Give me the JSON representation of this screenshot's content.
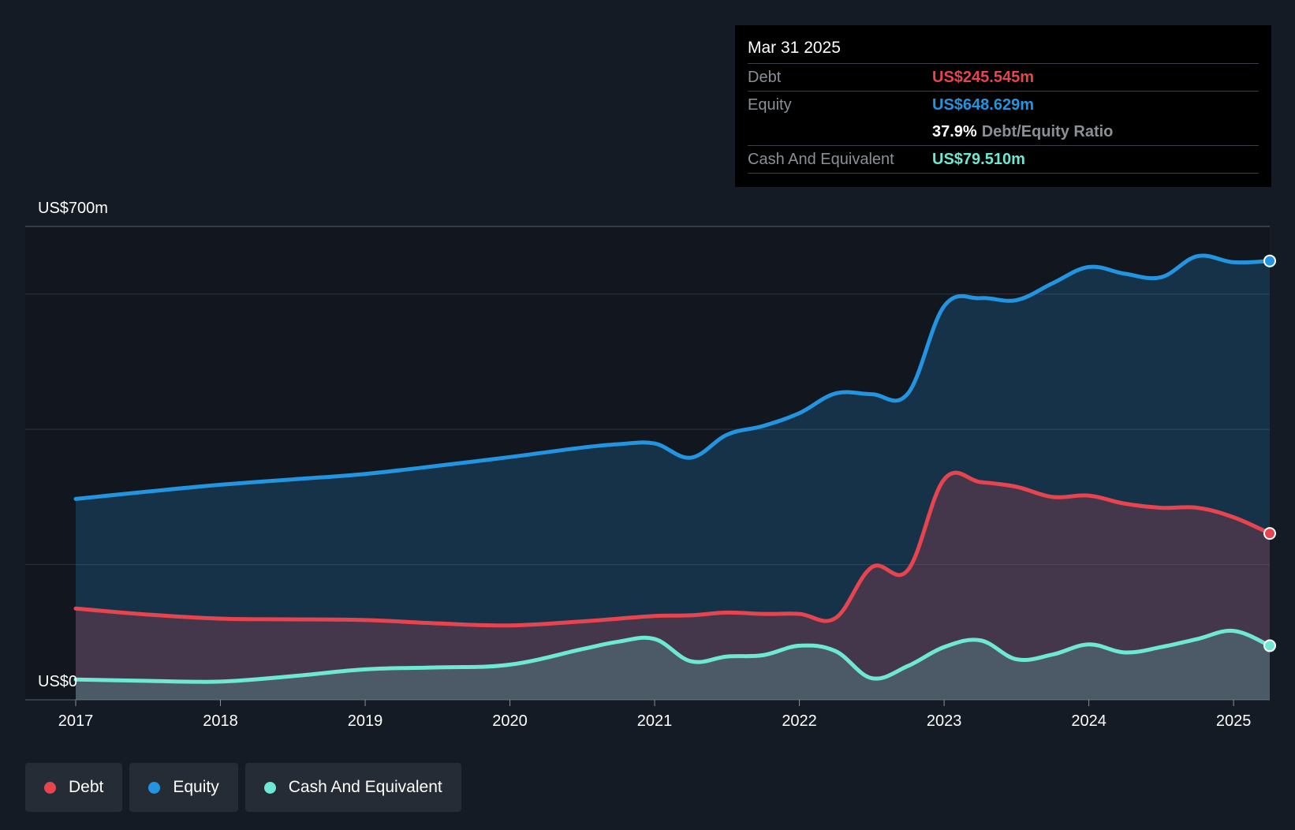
{
  "colors": {
    "background": "#151b24",
    "debt": "#e64550",
    "equity": "#2394df",
    "cash": "#6fe8d3",
    "grid": "#2c333d",
    "text": "#ffffff",
    "muted": "#8b8f96"
  },
  "tooltip": {
    "date": "Mar 31 2025",
    "debt_label": "Debt",
    "debt_value": "US$245.545m",
    "equity_label": "Equity",
    "equity_value": "US$648.629m",
    "ratio_value": "37.9%",
    "ratio_label": "Debt/Equity Ratio",
    "cash_label": "Cash And Equivalent",
    "cash_value": "US$79.510m"
  },
  "legend": [
    {
      "label": "Debt",
      "color": "#e64550"
    },
    {
      "label": "Equity",
      "color": "#2394df"
    },
    {
      "label": "Cash And Equivalent",
      "color": "#6fe8d3"
    }
  ],
  "chart_data": {
    "type": "area",
    "title": "",
    "xlabel": "",
    "ylabel": "",
    "ylim": [
      0,
      700
    ],
    "xlim": [
      2017,
      2025.25
    ],
    "y_top_label": "US$700m",
    "y_bottom_label": "US$0",
    "x_ticks": [
      "2017",
      "2018",
      "2019",
      "2020",
      "2021",
      "2022",
      "2023",
      "2024",
      "2025"
    ],
    "x_tick_values": [
      2017,
      2018,
      2019,
      2020,
      2021,
      2022,
      2023,
      2024,
      2025
    ],
    "gridlines": [
      0,
      200,
      400,
      600,
      700
    ],
    "grid": true,
    "series": [
      {
        "name": "Equity",
        "color": "#2394df",
        "x": [
          2017,
          2017.5,
          2018,
          2018.5,
          2019,
          2019.5,
          2020,
          2020.5,
          2020.75,
          2021,
          2021.25,
          2021.5,
          2021.75,
          2022,
          2022.25,
          2022.5,
          2022.75,
          2023,
          2023.25,
          2023.5,
          2023.75,
          2024,
          2024.25,
          2024.5,
          2024.75,
          2025,
          2025.25
        ],
        "values": [
          297,
          308,
          318,
          326,
          334,
          346,
          359,
          373,
          378,
          379,
          358,
          392,
          405,
          424,
          453,
          452,
          453,
          582,
          594,
          591,
          616,
          640,
          630,
          625,
          656,
          647,
          649
        ]
      },
      {
        "name": "Debt",
        "color": "#e64550",
        "x": [
          2017,
          2017.5,
          2018,
          2018.5,
          2019,
          2019.5,
          2020,
          2020.5,
          2020.75,
          2021,
          2021.25,
          2021.5,
          2021.75,
          2022,
          2022.25,
          2022.5,
          2022.75,
          2023,
          2023.25,
          2023.5,
          2023.75,
          2024,
          2024.25,
          2024.5,
          2024.75,
          2025,
          2025.25
        ],
        "values": [
          135,
          126,
          120,
          119,
          118,
          113,
          110,
          116,
          120,
          124,
          125,
          129,
          127,
          127,
          121,
          196,
          192,
          326,
          322,
          315,
          300,
          302,
          290,
          284,
          284,
          270,
          246
        ]
      },
      {
        "name": "Cash And Equivalent",
        "color": "#6fe8d3",
        "x": [
          2017,
          2017.5,
          2018,
          2018.5,
          2019,
          2019.5,
          2020,
          2020.5,
          2020.75,
          2021,
          2021.25,
          2021.5,
          2021.75,
          2022,
          2022.25,
          2022.5,
          2022.75,
          2023,
          2023.25,
          2023.5,
          2023.75,
          2024,
          2024.25,
          2024.5,
          2024.75,
          2025,
          2025.25
        ],
        "values": [
          30,
          28,
          27,
          35,
          45,
          48,
          52,
          75,
          86,
          90,
          57,
          64,
          66,
          80,
          72,
          32,
          50,
          78,
          88,
          60,
          67,
          82,
          70,
          78,
          90,
          102,
          80
        ]
      }
    ]
  }
}
